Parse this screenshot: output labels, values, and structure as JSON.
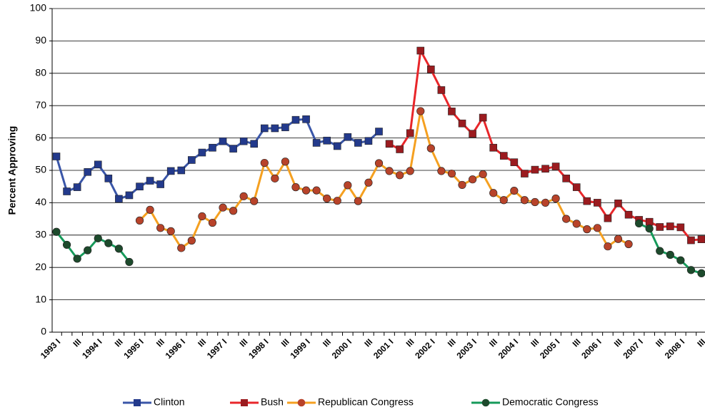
{
  "chart_data": {
    "type": "line",
    "y_label": "Percent Approving",
    "categories": [
      "1993 I",
      null,
      "III",
      null,
      "1994 I",
      null,
      "III",
      null,
      "1995 I",
      null,
      "III",
      null,
      "1996 I",
      null,
      "III",
      null,
      "1997 I",
      null,
      "III",
      null,
      "1998 I",
      null,
      "III",
      null,
      "1999 I",
      null,
      "III",
      null,
      "2000 I",
      null,
      "III",
      null,
      "2001 I",
      null,
      "III",
      null,
      "2002 I",
      null,
      "III",
      null,
      "2003 I",
      null,
      "III",
      null,
      "2004 I",
      null,
      "III",
      null,
      "2005 I",
      null,
      "III",
      null,
      "2006 I",
      null,
      "III",
      null,
      "2007 I",
      null,
      "III",
      null,
      "2008 I",
      null,
      "III"
    ],
    "ylim": [
      0,
      100
    ],
    "yticks": [
      0,
      10,
      20,
      30,
      40,
      50,
      60,
      70,
      80,
      90,
      100
    ],
    "grid": true,
    "legend": "bottom",
    "series": [
      {
        "name": "Clinton",
        "color": "#3a56a8",
        "marker_color": "#233a8c",
        "marker": "square",
        "values": [
          54.3,
          43.5,
          44.8,
          49.5,
          51.8,
          47.5,
          41.2,
          42.3,
          45,
          46.8,
          45.7,
          49.8,
          50,
          53.2,
          55.5,
          57,
          59,
          56.7,
          59,
          58.2,
          63,
          63,
          63.3,
          65.6,
          65.8,
          58.5,
          59.2,
          57.5,
          60.3,
          58.5,
          59.1,
          62,
          null,
          null,
          null,
          null,
          null,
          null,
          null,
          null,
          null,
          null,
          null,
          null,
          null,
          null,
          null,
          null,
          null,
          null,
          null,
          null,
          null,
          null,
          null,
          null,
          null,
          null,
          null,
          null,
          null,
          null,
          null
        ]
      },
      {
        "name": "Bush",
        "color": "#e8262a",
        "marker_color": "#9b1b1f",
        "marker": "square",
        "values": [
          null,
          null,
          null,
          null,
          null,
          null,
          null,
          null,
          null,
          null,
          null,
          null,
          null,
          null,
          null,
          null,
          null,
          null,
          null,
          null,
          null,
          null,
          null,
          null,
          null,
          null,
          null,
          null,
          null,
          null,
          null,
          null,
          58.2,
          56.5,
          61.5,
          87,
          81.2,
          74.8,
          68.2,
          64.5,
          61.3,
          66.3,
          57,
          54.5,
          52.5,
          49,
          50.2,
          50.5,
          51.2,
          47.5,
          44.8,
          40.5,
          40,
          35.2,
          39.8,
          36.3,
          34.7,
          34.1,
          32.5,
          32.7,
          32.4,
          28.4,
          28.7
        ]
      },
      {
        "name": "Republican Congress",
        "color": "#f5a020",
        "marker_color": "#b8432a",
        "marker": "circle",
        "values": [
          null,
          null,
          null,
          null,
          null,
          null,
          null,
          null,
          34.5,
          37.8,
          32.2,
          31.2,
          26,
          28.3,
          35.8,
          33.8,
          38.5,
          37.5,
          42,
          40.5,
          52.3,
          47.5,
          52.7,
          44.8,
          43.8,
          43.8,
          41.3,
          40.6,
          45.4,
          40.5,
          46.2,
          52.2,
          49.8,
          48.5,
          49.8,
          68.3,
          56.8,
          49.8,
          49,
          45.5,
          47.2,
          48.8,
          43,
          40.8,
          43.7,
          40.8,
          40.2,
          40,
          41.3,
          35,
          33.5,
          31.8,
          32.2,
          26.5,
          28.8,
          27.2,
          null,
          null,
          null,
          null,
          null,
          null,
          null
        ]
      },
      {
        "name": "Democratic Congress",
        "color": "#169a5a",
        "marker_color": "#1d4a2c",
        "marker": "circle",
        "values": [
          31,
          27,
          22.7,
          25.3,
          29,
          27.5,
          25.8,
          21.7,
          null,
          null,
          null,
          null,
          null,
          null,
          null,
          null,
          null,
          null,
          null,
          null,
          null,
          null,
          null,
          null,
          null,
          null,
          null,
          null,
          null,
          null,
          null,
          null,
          null,
          null,
          null,
          null,
          null,
          null,
          null,
          null,
          null,
          null,
          null,
          null,
          null,
          null,
          null,
          null,
          null,
          null,
          null,
          null,
          null,
          null,
          null,
          null,
          33.6,
          32,
          25.1,
          23.9,
          22.2,
          19.2,
          18.2
        ]
      }
    ]
  }
}
